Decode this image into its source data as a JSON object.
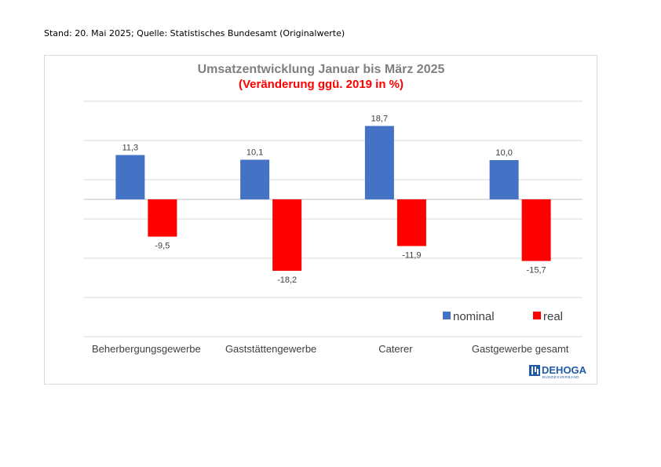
{
  "header": {
    "stand_text": "Stand: 20. Mai 2025; Quelle: Statistisches Bundesamt (Originalwerte)"
  },
  "logo": {
    "name": "DEHOGA",
    "subtitle": "BUNDESVERBAND",
    "color": "#1f5aa8"
  },
  "colors": {
    "nominal": "#4472c4",
    "real": "#ff0000",
    "subtitle": "#ff0000",
    "title": "#7f7f7f"
  },
  "chart_data": {
    "type": "bar",
    "title": "Umsatzentwicklung Januar bis März 2025",
    "subtitle": "(Veränderung ggü. 2019 in %)",
    "categories": [
      "Beherbergungsgewerbe",
      "Gaststättengewerbe",
      "Caterer",
      "Gastgewerbe gesamt"
    ],
    "series": [
      {
        "name": "nominal",
        "values": [
          11.3,
          10.1,
          18.7,
          10.0
        ],
        "labels": [
          "11,3",
          "10,1",
          "18,7",
          "10,0"
        ]
      },
      {
        "name": "real",
        "values": [
          -9.5,
          -18.2,
          -11.9,
          -15.7
        ],
        "labels": [
          "-9,5",
          "-18,2",
          "-11,9",
          "-15,7"
        ]
      }
    ],
    "ylim": [
      -35,
      25
    ],
    "gridlines": [
      25,
      15,
      5,
      0,
      -5,
      -15,
      -25,
      -35
    ],
    "grid": true,
    "legend": "bottom-right"
  }
}
